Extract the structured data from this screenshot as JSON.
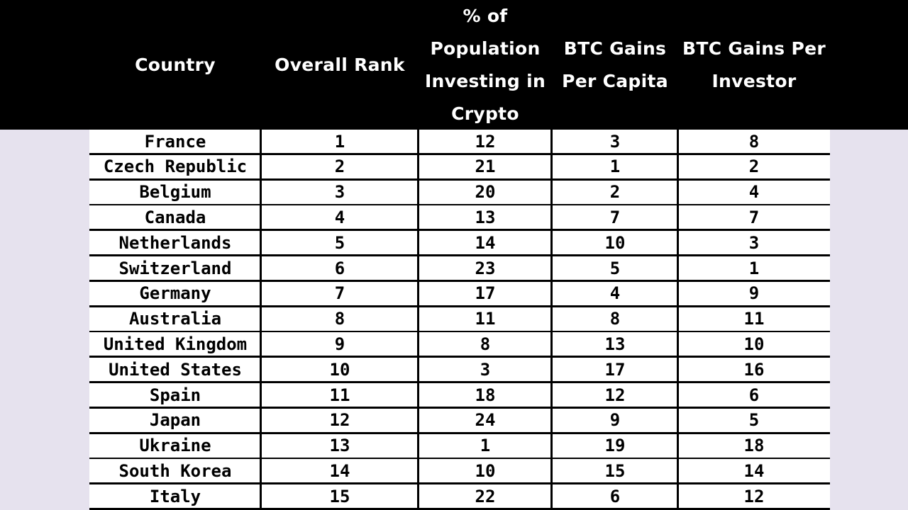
{
  "colors": {
    "header_bg": "#000000",
    "header_text": "#ffffff",
    "page_bg": "#e6e2ee",
    "row_bg": "#ffffff",
    "grid": "#000000"
  },
  "headers": [
    {
      "key": "country",
      "lines": [
        "Country"
      ]
    },
    {
      "key": "overall_rank",
      "lines": [
        "Overall Rank"
      ]
    },
    {
      "key": "pct_population",
      "lines": [
        "% of",
        "Population",
        "Investing in",
        "Crypto"
      ]
    },
    {
      "key": "btc_per_capita",
      "lines": [
        "BTC Gains",
        "Per Capita"
      ]
    },
    {
      "key": "btc_per_investor",
      "lines": [
        "BTC Gains Per",
        "Investor"
      ]
    }
  ],
  "rows": [
    {
      "country": "France",
      "overall_rank": "1",
      "pct_population": "12",
      "btc_per_capita": "3",
      "btc_per_investor": "8"
    },
    {
      "country": "Czech Republic",
      "overall_rank": "2",
      "pct_population": "21",
      "btc_per_capita": "1",
      "btc_per_investor": "2"
    },
    {
      "country": "Belgium",
      "overall_rank": "3",
      "pct_population": "20",
      "btc_per_capita": "2",
      "btc_per_investor": "4"
    },
    {
      "country": "Canada",
      "overall_rank": "4",
      "pct_population": "13",
      "btc_per_capita": "7",
      "btc_per_investor": "7"
    },
    {
      "country": "Netherlands",
      "overall_rank": "5",
      "pct_population": "14",
      "btc_per_capita": "10",
      "btc_per_investor": "3"
    },
    {
      "country": "Switzerland",
      "overall_rank": "6",
      "pct_population": "23",
      "btc_per_capita": "5",
      "btc_per_investor": "1"
    },
    {
      "country": "Germany",
      "overall_rank": "7",
      "pct_population": "17",
      "btc_per_capita": "4",
      "btc_per_investor": "9"
    },
    {
      "country": "Australia",
      "overall_rank": "8",
      "pct_population": "11",
      "btc_per_capita": "8",
      "btc_per_investor": "11"
    },
    {
      "country": "United Kingdom",
      "overall_rank": "9",
      "pct_population": "8",
      "btc_per_capita": "13",
      "btc_per_investor": "10"
    },
    {
      "country": "United States",
      "overall_rank": "10",
      "pct_population": "3",
      "btc_per_capita": "17",
      "btc_per_investor": "16"
    },
    {
      "country": "Spain",
      "overall_rank": "11",
      "pct_population": "18",
      "btc_per_capita": "12",
      "btc_per_investor": "6"
    },
    {
      "country": "Japan",
      "overall_rank": "12",
      "pct_population": "24",
      "btc_per_capita": "9",
      "btc_per_investor": "5"
    },
    {
      "country": "Ukraine",
      "overall_rank": "13",
      "pct_population": "1",
      "btc_per_capita": "19",
      "btc_per_investor": "18"
    },
    {
      "country": "South Korea",
      "overall_rank": "14",
      "pct_population": "10",
      "btc_per_capita": "15",
      "btc_per_investor": "14"
    },
    {
      "country": "Italy",
      "overall_rank": "15",
      "pct_population": "22",
      "btc_per_capita": "6",
      "btc_per_investor": "12"
    }
  ]
}
